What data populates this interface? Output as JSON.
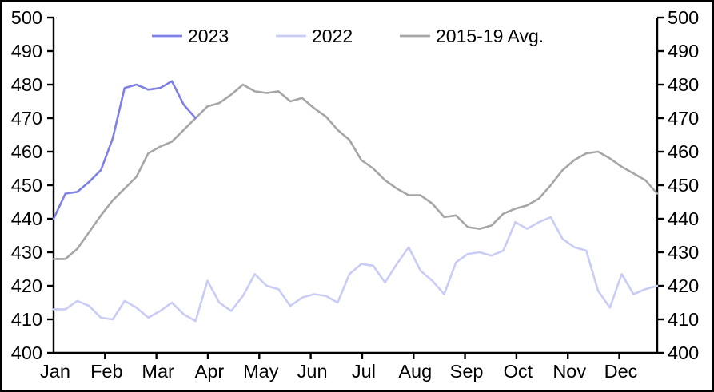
{
  "chart_data": {
    "type": "line",
    "title": "",
    "x_unit": "weekly",
    "x_tick_labels": [
      "Jan",
      "Feb",
      "Mar",
      "Apr",
      "May",
      "Jun",
      "Jul",
      "Aug",
      "Sep",
      "Oct",
      "Nov",
      "Dec"
    ],
    "ylim": [
      400,
      500
    ],
    "y_tick_interval": 10,
    "y_tick_labels_left": [
      "500",
      "490",
      "480",
      "470",
      "460",
      "450",
      "440",
      "430",
      "420",
      "410",
      "400"
    ],
    "y_tick_labels_right": [
      "500",
      "490",
      "480",
      "470",
      "460",
      "450",
      "440",
      "430",
      "420",
      "410",
      "400"
    ],
    "grid": false,
    "legend_position": "top-center",
    "axis_color": "#000000",
    "background_color": "#ffffff",
    "series": [
      {
        "name": "2023",
        "color": "#7e80e3",
        "values": [
          440,
          447.5,
          448,
          451,
          454.5,
          464,
          479,
          480,
          478.5,
          479,
          481,
          474,
          470
        ]
      },
      {
        "name": "2022",
        "color": "#c9ccf5",
        "values": [
          413,
          413,
          415.5,
          414,
          410.5,
          410,
          415.5,
          413.5,
          410.5,
          412.5,
          415,
          411.5,
          409.5,
          421.5,
          415,
          412.5,
          417,
          423.5,
          420,
          419,
          414,
          416.5,
          417.5,
          417,
          415,
          423.5,
          426.5,
          426,
          421,
          426.5,
          431.5,
          424.5,
          421.5,
          417.5,
          427,
          429.5,
          430,
          429,
          430.5,
          439,
          437,
          439,
          440.5,
          434,
          431.5,
          430.5,
          418.5,
          413.5,
          423.5,
          417.5,
          419,
          420
        ]
      },
      {
        "name": "2015-19 Avg.",
        "color": "#a6a6a6",
        "values": [
          428,
          428,
          431,
          436,
          441,
          445.5,
          449,
          452.5,
          459.5,
          461.5,
          463,
          466.5,
          470,
          473.5,
          474.5,
          477,
          480,
          478,
          477.5,
          478,
          475,
          476,
          473,
          470.5,
          466.5,
          463.5,
          457.5,
          455,
          451.5,
          449,
          447,
          447,
          444.5,
          440.5,
          441,
          437.5,
          437,
          438,
          441.5,
          443,
          444,
          446,
          450,
          454.5,
          457.5,
          459.5,
          460,
          458,
          455.5,
          453.5,
          451.5,
          447.5
        ]
      }
    ]
  }
}
